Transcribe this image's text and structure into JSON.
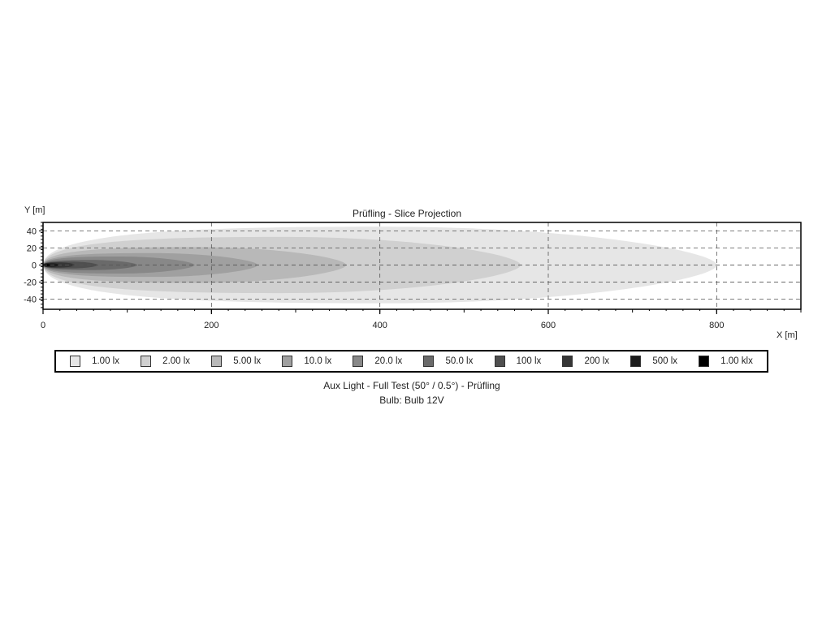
{
  "chart_data": {
    "type": "heatmap",
    "title": "Prüfling - Slice Projection",
    "xlabel": "X [m]",
    "ylabel": "Y [m]",
    "xlim": [
      0,
      900
    ],
    "ylim": [
      -52,
      50
    ],
    "xticks": [
      "0",
      "200",
      "400",
      "600",
      "800"
    ],
    "xtick_values": [
      0,
      200,
      400,
      600,
      800
    ],
    "yticks": [
      "40",
      "20",
      "0",
      "-20",
      "-40"
    ],
    "ytick_values": [
      40,
      20,
      0,
      -20,
      -40
    ],
    "grid": true,
    "legend_position": "bottom",
    "levels": [
      {
        "label": "1.00 lx",
        "color": "#e6e6e6",
        "x_reach": 800,
        "half_width": 45
      },
      {
        "label": "2.00 lx",
        "color": "#d0d0d0",
        "x_reach": 567,
        "half_width": 33
      },
      {
        "label": "5.00 lx",
        "color": "#b8b8b8",
        "x_reach": 360,
        "half_width": 21
      },
      {
        "label": "10.0 lx",
        "color": "#a0a0a0",
        "x_reach": 255,
        "half_width": 14
      },
      {
        "label": "20.0 lx",
        "color": "#888888",
        "x_reach": 180,
        "half_width": 10
      },
      {
        "label": "50.0 lx",
        "color": "#6a6a6a",
        "x_reach": 112,
        "half_width": 6
      },
      {
        "label": "100 lx",
        "color": "#4f4f4f",
        "x_reach": 65,
        "half_width": 4
      },
      {
        "label": "200 lx",
        "color": "#363636",
        "x_reach": 38,
        "half_width": 3
      },
      {
        "label": "500 lx",
        "color": "#1c1c1c",
        "x_reach": 20,
        "half_width": 2
      },
      {
        "label": "1.00 klx",
        "color": "#000000",
        "x_reach": 8,
        "half_width": 1.2
      }
    ]
  },
  "caption": {
    "line1": "Aux Light - Full Test (50° / 0.5°) - Prüfling",
    "line2": "Bulb: Bulb 12V"
  }
}
